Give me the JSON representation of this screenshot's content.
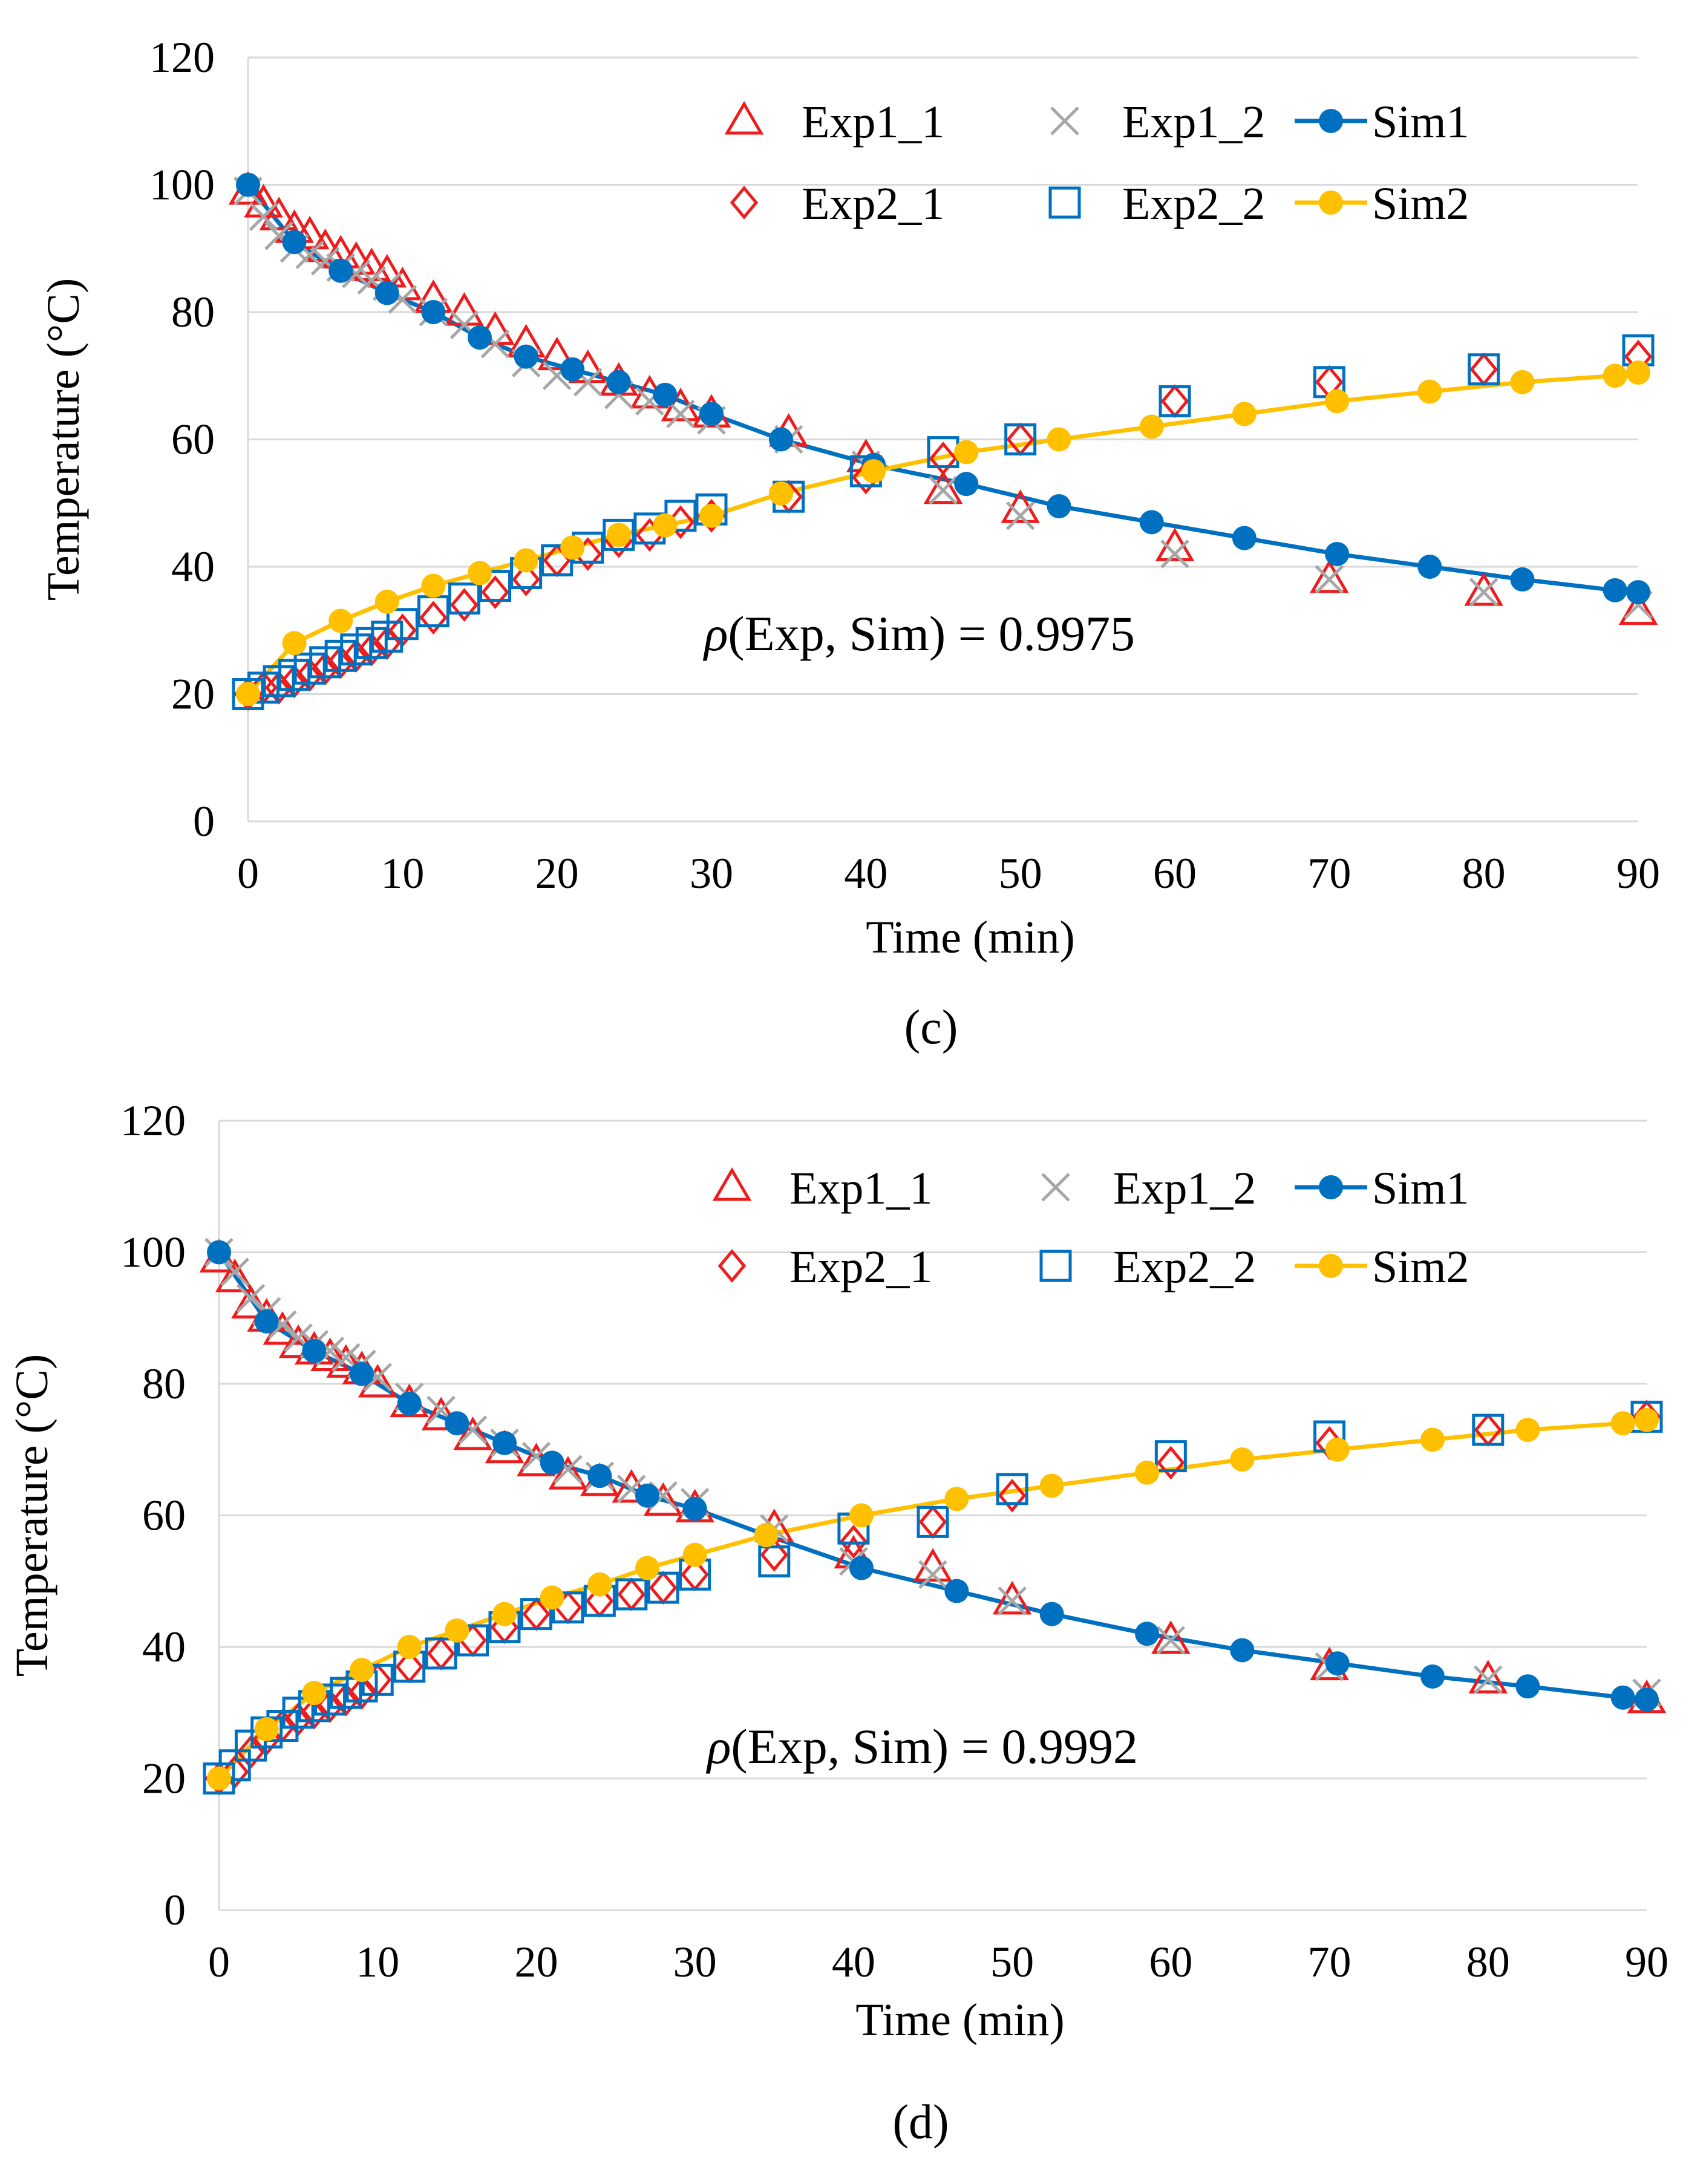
{
  "chart_data": [
    {
      "type": "line",
      "panel_label": "(c)",
      "xlabel": "Time (min)",
      "ylabel": "Temperature (°C)",
      "xlim": [
        0,
        90
      ],
      "ylim": [
        0,
        120
      ],
      "xticks": [
        "0",
        "10",
        "20",
        "30",
        "40",
        "50",
        "60",
        "70",
        "80",
        "90"
      ],
      "yticks": [
        "0",
        "20",
        "40",
        "60",
        "80",
        "100",
        "120"
      ],
      "grid": true,
      "legend_position": "top-right",
      "annotation": {
        "prefix": "ρ(Exp, Sim) = ",
        "value": "0.9975"
      },
      "series": [
        {
          "name": "Exp1_1",
          "marker": "triangle",
          "color": "#ee1c1c",
          "x": [
            0,
            1,
            2,
            3,
            4,
            5,
            6,
            7,
            8,
            9,
            10,
            12,
            14,
            16,
            18,
            20,
            22,
            24,
            26,
            28,
            30,
            35,
            40,
            45,
            50,
            60,
            70,
            80,
            90
          ],
          "y": [
            99,
            97,
            95,
            93,
            92,
            90,
            89,
            88,
            87,
            86,
            84,
            82,
            80,
            77,
            75,
            73,
            71,
            69,
            67,
            65,
            64,
            61,
            57,
            52,
            49,
            43,
            38,
            36,
            33
          ]
        },
        {
          "name": "Exp1_2",
          "marker": "x",
          "color": "#a6a6a6",
          "x": [
            0,
            1,
            2,
            3,
            4,
            5,
            6,
            7,
            8,
            9,
            10,
            12,
            14,
            16,
            18,
            20,
            22,
            24,
            26,
            28,
            30,
            35,
            40,
            45,
            50,
            60,
            70,
            80,
            90
          ],
          "y": [
            99,
            95,
            92,
            90,
            89,
            88,
            87,
            86,
            85,
            84,
            82,
            80,
            78,
            75,
            72,
            70,
            69,
            67,
            66,
            64,
            63,
            60,
            56,
            52,
            48,
            42,
            38,
            36,
            34
          ]
        },
        {
          "name": "Sim1",
          "marker": "circle",
          "color": "#0070c0",
          "x": [
            0,
            3,
            6,
            9,
            12,
            15,
            18,
            21,
            24,
            27,
            30,
            34.5,
            40.5,
            46.5,
            52.5,
            58.5,
            64.5,
            70.5,
            76.5,
            82.5,
            88.5,
            90
          ],
          "y": [
            100,
            91,
            86.5,
            83,
            80,
            76,
            73,
            71,
            69,
            67,
            64,
            60,
            56,
            53,
            49.5,
            47,
            44.5,
            42,
            40,
            38,
            36.3,
            36
          ]
        },
        {
          "name": "Exp2_1",
          "marker": "diamond",
          "color": "#ee1c1c",
          "x": [
            0,
            1,
            2,
            3,
            4,
            5,
            6,
            7,
            8,
            9,
            10,
            12,
            14,
            16,
            18,
            20,
            22,
            24,
            26,
            28,
            30,
            35,
            40,
            45,
            50,
            60,
            70,
            80,
            90
          ],
          "y": [
            20,
            21,
            21,
            22,
            23,
            24,
            25,
            26,
            27,
            28,
            30,
            32,
            34,
            36,
            38,
            41,
            42,
            44,
            45,
            47,
            48,
            51,
            54,
            57,
            60,
            66,
            69,
            71,
            73
          ]
        },
        {
          "name": "Exp2_2",
          "marker": "square",
          "color": "#0070c0",
          "x": [
            0,
            1,
            2,
            3,
            4,
            5,
            6,
            7,
            8,
            9,
            10,
            12,
            14,
            16,
            18,
            20,
            22,
            24,
            26,
            28,
            30,
            35,
            40,
            45,
            50,
            60,
            70,
            80,
            90
          ],
          "y": [
            20,
            21,
            22,
            23,
            24,
            25,
            26,
            27,
            28,
            29,
            31,
            33,
            35,
            37,
            39,
            41,
            43,
            45,
            46,
            48,
            49,
            51,
            55,
            58,
            60,
            66,
            69,
            71,
            74
          ]
        },
        {
          "name": "Sim2",
          "marker": "circle",
          "color": "#ffc000",
          "x": [
            0,
            3,
            6,
            9,
            12,
            15,
            18,
            21,
            24,
            27,
            30,
            34.5,
            40.5,
            46.5,
            52.5,
            58.5,
            64.5,
            70.5,
            76.5,
            82.5,
            88.5,
            90
          ],
          "y": [
            20,
            28,
            31.5,
            34.5,
            37,
            39,
            41,
            43,
            45,
            46.5,
            48,
            51.5,
            55,
            58,
            60,
            62,
            64,
            66,
            67.5,
            69,
            70,
            70.5
          ]
        }
      ]
    },
    {
      "type": "line",
      "panel_label": "(d)",
      "xlabel": "Time (min)",
      "ylabel": "Temperature (°C)",
      "xlim": [
        0,
        90
      ],
      "ylim": [
        0,
        120
      ],
      "xticks": [
        "0",
        "10",
        "20",
        "30",
        "40",
        "50",
        "60",
        "70",
        "80",
        "90"
      ],
      "yticks": [
        "0",
        "20",
        "40",
        "60",
        "80",
        "100",
        "120"
      ],
      "grid": true,
      "legend_position": "top-right",
      "annotation": {
        "prefix": "ρ(Exp, Sim) = ",
        "value": "0.9992"
      },
      "series": [
        {
          "name": "Exp1_1",
          "marker": "triangle",
          "color": "#ee1c1c",
          "x": [
            0,
            1,
            2,
            3,
            4,
            5,
            6,
            7,
            8,
            9,
            10,
            12,
            14,
            16,
            18,
            20,
            22,
            24,
            26,
            28,
            30,
            35,
            40,
            45,
            50,
            60,
            70,
            80,
            90
          ],
          "y": [
            99,
            96,
            92,
            90,
            88,
            86,
            85,
            84,
            83,
            82,
            80,
            77,
            75,
            72,
            70,
            68,
            66,
            65,
            64,
            62,
            61,
            58,
            54,
            52,
            47,
            41,
            37,
            35,
            32
          ]
        },
        {
          "name": "Exp1_2",
          "marker": "x",
          "color": "#a6a6a6",
          "x": [
            0,
            1,
            2,
            3,
            4,
            5,
            6,
            7,
            8,
            9,
            10,
            12,
            14,
            16,
            18,
            20,
            22,
            24,
            26,
            28,
            30,
            35,
            40,
            45,
            50,
            60,
            70,
            80,
            90
          ],
          "y": [
            100,
            97,
            93,
            91,
            89,
            87,
            86,
            85,
            84,
            83,
            81,
            78,
            76,
            73,
            71,
            69,
            67,
            66,
            64,
            63,
            62,
            58,
            53,
            51,
            47,
            41,
            37,
            35,
            33
          ]
        },
        {
          "name": "Sim1",
          "marker": "circle",
          "color": "#0070c0",
          "x": [
            0,
            3,
            6,
            9,
            12,
            15,
            18,
            21,
            24,
            27,
            30,
            34.5,
            40.5,
            46.5,
            52.5,
            58.5,
            64.5,
            70.5,
            76.5,
            82.5,
            88.5,
            90
          ],
          "y": [
            100,
            89.5,
            85,
            81.5,
            77,
            74,
            71,
            68,
            66,
            63,
            61,
            57,
            52,
            48.5,
            45,
            42,
            39.5,
            37.5,
            35.5,
            34,
            32.3,
            32
          ]
        },
        {
          "name": "Exp2_1",
          "marker": "diamond",
          "color": "#ee1c1c",
          "x": [
            0,
            1,
            2,
            3,
            4,
            5,
            6,
            7,
            8,
            9,
            10,
            12,
            14,
            16,
            18,
            20,
            22,
            24,
            26,
            28,
            30,
            35,
            40,
            45,
            50,
            60,
            70,
            80,
            90
          ],
          "y": [
            20,
            21,
            24,
            26,
            28,
            29,
            30,
            31,
            32,
            33,
            35,
            37,
            39,
            41,
            43,
            45,
            46,
            47,
            48,
            49,
            51,
            54,
            56,
            59,
            63,
            68,
            71,
            73,
            75
          ]
        },
        {
          "name": "Exp2_2",
          "marker": "square",
          "color": "#0070c0",
          "x": [
            0,
            1,
            2,
            3,
            4,
            5,
            6,
            7,
            8,
            9,
            10,
            12,
            14,
            16,
            18,
            20,
            22,
            24,
            26,
            28,
            30,
            35,
            40,
            45,
            50,
            60,
            70,
            80,
            90
          ],
          "y": [
            20,
            22,
            25,
            27,
            28,
            30,
            31,
            32,
            33,
            34,
            35,
            37,
            39,
            41,
            43,
            45,
            46,
            47,
            48,
            49,
            51,
            53,
            58,
            59,
            64,
            69,
            72,
            73,
            75
          ]
        },
        {
          "name": "Sim2",
          "marker": "circle",
          "color": "#ffc000",
          "x": [
            0,
            3,
            6,
            9,
            12,
            15,
            18,
            21,
            24,
            27,
            30,
            34.5,
            40.5,
            46.5,
            52.5,
            58.5,
            64.5,
            70.5,
            76.5,
            82.5,
            88.5,
            90
          ],
          "y": [
            20,
            27.5,
            33,
            36.5,
            40,
            42.5,
            45,
            47.5,
            49.5,
            52,
            54,
            57,
            60,
            62.5,
            64.5,
            66.5,
            68.5,
            70,
            71.5,
            73,
            74,
            74.5
          ]
        }
      ]
    }
  ]
}
